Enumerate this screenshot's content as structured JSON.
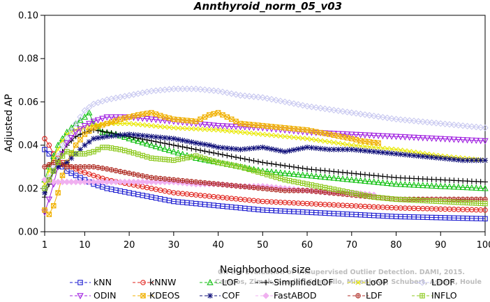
{
  "chart_data": {
    "type": "line",
    "title": "Annthyroid_norm_05_v03",
    "xlabel": "Neighborhood size",
    "ylabel": "Adjusted AP",
    "xlim": [
      1,
      100
    ],
    "ylim": [
      0,
      0.1
    ],
    "x_ticks": [
      1,
      10,
      20,
      30,
      40,
      50,
      60,
      70,
      80,
      90,
      100
    ],
    "y_ticks": [
      0.0,
      0.02,
      0.04,
      0.06,
      0.08,
      0.1
    ],
    "x_tick_labels": [
      "1",
      "10",
      "20",
      "30",
      "40",
      "50",
      "60",
      "70",
      "80",
      "90",
      "100"
    ],
    "y_tick_labels": [
      "0.00",
      "0.02",
      "0.04",
      "0.06",
      "0.08",
      "0.10"
    ],
    "grid": false,
    "legend_position": "bottom",
    "watermark": [
      "Campos, Zimek, Sander, Campello, Micenkova, Schubert, Assent, Houle",
      "On the Evaluation of Unsupervised Outlier Detection. DAMI, 2015."
    ],
    "series": [
      {
        "name": "kNN",
        "color": "#1a1ad0",
        "marker": "square",
        "points": [
          [
            1,
            0.038
          ],
          [
            2,
            0.036
          ],
          [
            3,
            0.034
          ],
          [
            4,
            0.032
          ],
          [
            5,
            0.03
          ],
          [
            6,
            0.028
          ],
          [
            8,
            0.026
          ],
          [
            10,
            0.024
          ],
          [
            12,
            0.022
          ],
          [
            15,
            0.02
          ],
          [
            20,
            0.018
          ],
          [
            25,
            0.016
          ],
          [
            30,
            0.014
          ],
          [
            40,
            0.012
          ],
          [
            50,
            0.01
          ],
          [
            60,
            0.009
          ],
          [
            70,
            0.008
          ],
          [
            80,
            0.007
          ],
          [
            90,
            0.0065
          ],
          [
            100,
            0.006
          ]
        ]
      },
      {
        "name": "kNNW",
        "color": "#e0201a",
        "marker": "circle",
        "points": [
          [
            1,
            0.043
          ],
          [
            2,
            0.04
          ],
          [
            3,
            0.036
          ],
          [
            4,
            0.034
          ],
          [
            5,
            0.032
          ],
          [
            7,
            0.03
          ],
          [
            9,
            0.028
          ],
          [
            12,
            0.026
          ],
          [
            15,
            0.024
          ],
          [
            20,
            0.022
          ],
          [
            25,
            0.02
          ],
          [
            30,
            0.018
          ],
          [
            40,
            0.016
          ],
          [
            50,
            0.014
          ],
          [
            60,
            0.013
          ],
          [
            70,
            0.012
          ],
          [
            80,
            0.011
          ],
          [
            90,
            0.0105
          ],
          [
            100,
            0.01
          ]
        ]
      },
      {
        "name": "LOF",
        "color": "#10c010",
        "marker": "triangle",
        "points": [
          [
            1,
            0.024
          ],
          [
            2,
            0.03
          ],
          [
            3,
            0.035
          ],
          [
            4,
            0.04
          ],
          [
            5,
            0.043
          ],
          [
            6,
            0.046
          ],
          [
            8,
            0.05
          ],
          [
            10,
            0.053
          ],
          [
            11,
            0.055
          ],
          [
            12,
            0.05
          ],
          [
            14,
            0.046
          ],
          [
            17,
            0.045
          ],
          [
            20,
            0.043
          ],
          [
            25,
            0.04
          ],
          [
            30,
            0.037
          ],
          [
            35,
            0.034
          ],
          [
            40,
            0.032
          ],
          [
            45,
            0.03
          ],
          [
            50,
            0.028
          ],
          [
            60,
            0.026
          ],
          [
            70,
            0.024
          ],
          [
            80,
            0.022
          ],
          [
            90,
            0.021
          ],
          [
            100,
            0.02
          ]
        ]
      },
      {
        "name": "SimplifiedLOF",
        "color": "#000000",
        "marker": "plus",
        "points": [
          [
            1,
            0.016
          ],
          [
            2,
            0.022
          ],
          [
            3,
            0.028
          ],
          [
            4,
            0.033
          ],
          [
            5,
            0.037
          ],
          [
            6,
            0.04
          ],
          [
            8,
            0.044
          ],
          [
            10,
            0.046
          ],
          [
            12,
            0.047
          ],
          [
            15,
            0.046
          ],
          [
            20,
            0.044
          ],
          [
            25,
            0.042
          ],
          [
            30,
            0.04
          ],
          [
            35,
            0.038
          ],
          [
            40,
            0.036
          ],
          [
            45,
            0.034
          ],
          [
            50,
            0.032
          ],
          [
            60,
            0.029
          ],
          [
            70,
            0.027
          ],
          [
            80,
            0.025
          ],
          [
            90,
            0.024
          ],
          [
            100,
            0.023
          ]
        ]
      },
      {
        "name": "LoOP",
        "color": "#e8e800",
        "marker": "x",
        "points": [
          [
            1,
            0.022
          ],
          [
            2,
            0.028
          ],
          [
            3,
            0.034
          ],
          [
            4,
            0.038
          ],
          [
            5,
            0.042
          ],
          [
            6,
            0.045
          ],
          [
            8,
            0.047
          ],
          [
            10,
            0.048
          ],
          [
            12,
            0.049
          ],
          [
            15,
            0.05
          ],
          [
            20,
            0.05
          ],
          [
            25,
            0.049
          ],
          [
            30,
            0.048
          ],
          [
            40,
            0.047
          ],
          [
            50,
            0.045
          ],
          [
            60,
            0.043
          ],
          [
            70,
            0.04
          ],
          [
            80,
            0.038
          ],
          [
            90,
            0.035
          ],
          [
            100,
            0.033
          ]
        ]
      },
      {
        "name": "LDOF",
        "color": "#c8c8f0",
        "marker": "diamond",
        "points": [
          [
            1,
            0.02
          ],
          [
            3,
            0.03
          ],
          [
            5,
            0.04
          ],
          [
            8,
            0.05
          ],
          [
            10,
            0.056
          ],
          [
            12,
            0.059
          ],
          [
            15,
            0.061
          ],
          [
            20,
            0.063
          ],
          [
            25,
            0.065
          ],
          [
            30,
            0.066
          ],
          [
            35,
            0.066
          ],
          [
            40,
            0.065
          ],
          [
            45,
            0.063
          ],
          [
            50,
            0.062
          ],
          [
            55,
            0.06
          ],
          [
            60,
            0.058
          ],
          [
            70,
            0.055
          ],
          [
            80,
            0.052
          ],
          [
            90,
            0.05
          ],
          [
            100,
            0.048
          ]
        ]
      },
      {
        "name": "ODIN",
        "color": "#a020e0",
        "marker": "triangle-down",
        "points": [
          [
            1,
            0.009
          ],
          [
            2,
            0.015
          ],
          [
            3,
            0.022
          ],
          [
            4,
            0.03
          ],
          [
            5,
            0.036
          ],
          [
            6,
            0.041
          ],
          [
            8,
            0.046
          ],
          [
            10,
            0.049
          ],
          [
            12,
            0.051
          ],
          [
            15,
            0.053
          ],
          [
            20,
            0.053
          ],
          [
            25,
            0.052
          ],
          [
            30,
            0.051
          ],
          [
            40,
            0.049
          ],
          [
            50,
            0.048
          ],
          [
            60,
            0.046
          ],
          [
            70,
            0.045
          ],
          [
            80,
            0.044
          ],
          [
            90,
            0.043
          ],
          [
            100,
            0.042
          ]
        ]
      },
      {
        "name": "KDEOS",
        "color": "#f0b000",
        "marker": "square-x",
        "points": [
          [
            1,
            0.01
          ],
          [
            2,
            0.008
          ],
          [
            3,
            0.012
          ],
          [
            4,
            0.018
          ],
          [
            5,
            0.026
          ],
          [
            6,
            0.032
          ],
          [
            8,
            0.04
          ],
          [
            10,
            0.045
          ],
          [
            12,
            0.048
          ],
          [
            15,
            0.05
          ],
          [
            18,
            0.052
          ],
          [
            20,
            0.053
          ],
          [
            22,
            0.054
          ],
          [
            25,
            0.055
          ],
          [
            28,
            0.053
          ],
          [
            30,
            0.052
          ],
          [
            35,
            0.051
          ],
          [
            38,
            0.054
          ],
          [
            40,
            0.055
          ],
          [
            42,
            0.053
          ],
          [
            45,
            0.05
          ],
          [
            50,
            0.049
          ],
          [
            55,
            0.048
          ],
          [
            60,
            0.047
          ],
          [
            65,
            0.045
          ],
          [
            70,
            0.043
          ],
          [
            72,
            0.042
          ],
          [
            76,
            0.041
          ]
        ]
      },
      {
        "name": "COF",
        "color": "#10107a",
        "marker": "star",
        "points": [
          [
            1,
            0.018
          ],
          [
            2,
            0.024
          ],
          [
            3,
            0.028
          ],
          [
            4,
            0.03
          ],
          [
            5,
            0.031
          ],
          [
            6,
            0.032
          ],
          [
            8,
            0.036
          ],
          [
            10,
            0.04
          ],
          [
            12,
            0.043
          ],
          [
            15,
            0.044
          ],
          [
            20,
            0.045
          ],
          [
            25,
            0.044
          ],
          [
            30,
            0.043
          ],
          [
            35,
            0.041
          ],
          [
            38,
            0.04
          ],
          [
            40,
            0.039
          ],
          [
            45,
            0.038
          ],
          [
            50,
            0.039
          ],
          [
            55,
            0.037
          ],
          [
            60,
            0.039
          ],
          [
            65,
            0.038
          ],
          [
            70,
            0.038
          ],
          [
            75,
            0.037
          ],
          [
            80,
            0.036
          ],
          [
            85,
            0.035
          ],
          [
            90,
            0.034
          ],
          [
            95,
            0.033
          ],
          [
            100,
            0.033
          ]
        ]
      },
      {
        "name": "FastABOD",
        "color": "#f0b0f0",
        "marker": "diamond-filled",
        "points": [
          [
            1,
            0.024
          ],
          [
            3,
            0.023
          ],
          [
            5,
            0.023
          ],
          [
            8,
            0.023
          ],
          [
            10,
            0.023
          ],
          [
            15,
            0.023
          ],
          [
            20,
            0.023
          ],
          [
            25,
            0.023
          ],
          [
            30,
            0.023
          ],
          [
            35,
            0.022
          ],
          [
            40,
            0.022
          ],
          [
            45,
            0.021
          ],
          [
            50,
            0.021
          ],
          [
            55,
            0.02
          ],
          [
            60,
            0.019
          ],
          [
            65,
            0.018
          ],
          [
            70,
            0.018
          ],
          [
            75,
            0.017
          ]
        ]
      },
      {
        "name": "LDF",
        "color": "#b03028",
        "marker": "circle-plus",
        "points": [
          [
            1,
            0.03
          ],
          [
            2,
            0.031
          ],
          [
            3,
            0.032
          ],
          [
            4,
            0.032
          ],
          [
            5,
            0.031
          ],
          [
            6,
            0.03
          ],
          [
            8,
            0.03
          ],
          [
            10,
            0.03
          ],
          [
            12,
            0.03
          ],
          [
            15,
            0.029
          ],
          [
            20,
            0.027
          ],
          [
            25,
            0.025
          ],
          [
            30,
            0.024
          ],
          [
            35,
            0.023
          ],
          [
            40,
            0.022
          ],
          [
            45,
            0.021
          ],
          [
            50,
            0.02
          ],
          [
            55,
            0.019
          ],
          [
            60,
            0.019
          ],
          [
            65,
            0.018
          ],
          [
            70,
            0.017
          ],
          [
            75,
            0.016
          ],
          [
            80,
            0.015
          ],
          [
            90,
            0.015
          ],
          [
            100,
            0.015
          ]
        ]
      },
      {
        "name": "INFLO",
        "color": "#8cc81c",
        "marker": "square-plus",
        "points": [
          [
            1,
            0.02
          ],
          [
            2,
            0.024
          ],
          [
            3,
            0.028
          ],
          [
            4,
            0.032
          ],
          [
            5,
            0.035
          ],
          [
            6,
            0.037
          ],
          [
            8,
            0.036
          ],
          [
            10,
            0.036
          ],
          [
            12,
            0.037
          ],
          [
            14,
            0.039
          ],
          [
            15,
            0.039
          ],
          [
            18,
            0.038
          ],
          [
            20,
            0.037
          ],
          [
            25,
            0.034
          ],
          [
            30,
            0.033
          ],
          [
            35,
            0.035
          ],
          [
            40,
            0.032
          ],
          [
            45,
            0.03
          ],
          [
            50,
            0.027
          ],
          [
            55,
            0.024
          ],
          [
            60,
            0.022
          ],
          [
            65,
            0.02
          ],
          [
            70,
            0.018
          ],
          [
            75,
            0.016
          ],
          [
            80,
            0.015
          ],
          [
            90,
            0.014
          ],
          [
            100,
            0.013
          ]
        ]
      }
    ]
  }
}
